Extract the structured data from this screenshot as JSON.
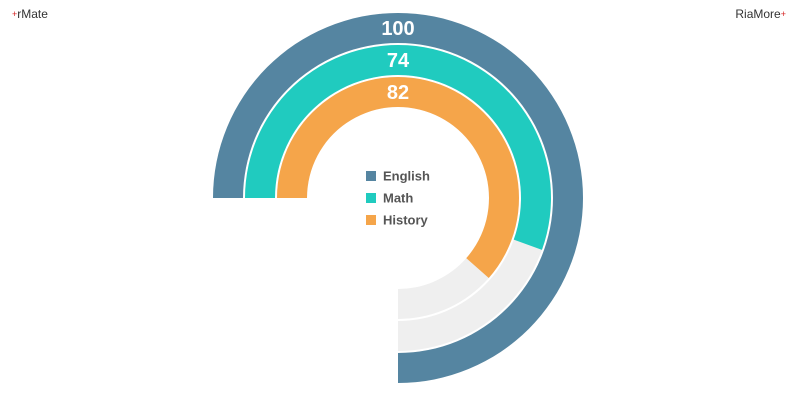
{
  "brand": {
    "left": "rMate",
    "right": "RiaMore",
    "left_spark": "+",
    "right_spark": "+"
  },
  "chart_data": {
    "type": "radial-bar",
    "max": 100,
    "series": [
      {
        "name": "English",
        "value": 100,
        "color": "#5585a1"
      },
      {
        "name": "Math",
        "value": 74,
        "color": "#20cbbf"
      },
      {
        "name": "History",
        "value": 82,
        "color": "#f5a54a"
      }
    ],
    "track_color": "#efefef",
    "legend_position": "center"
  }
}
